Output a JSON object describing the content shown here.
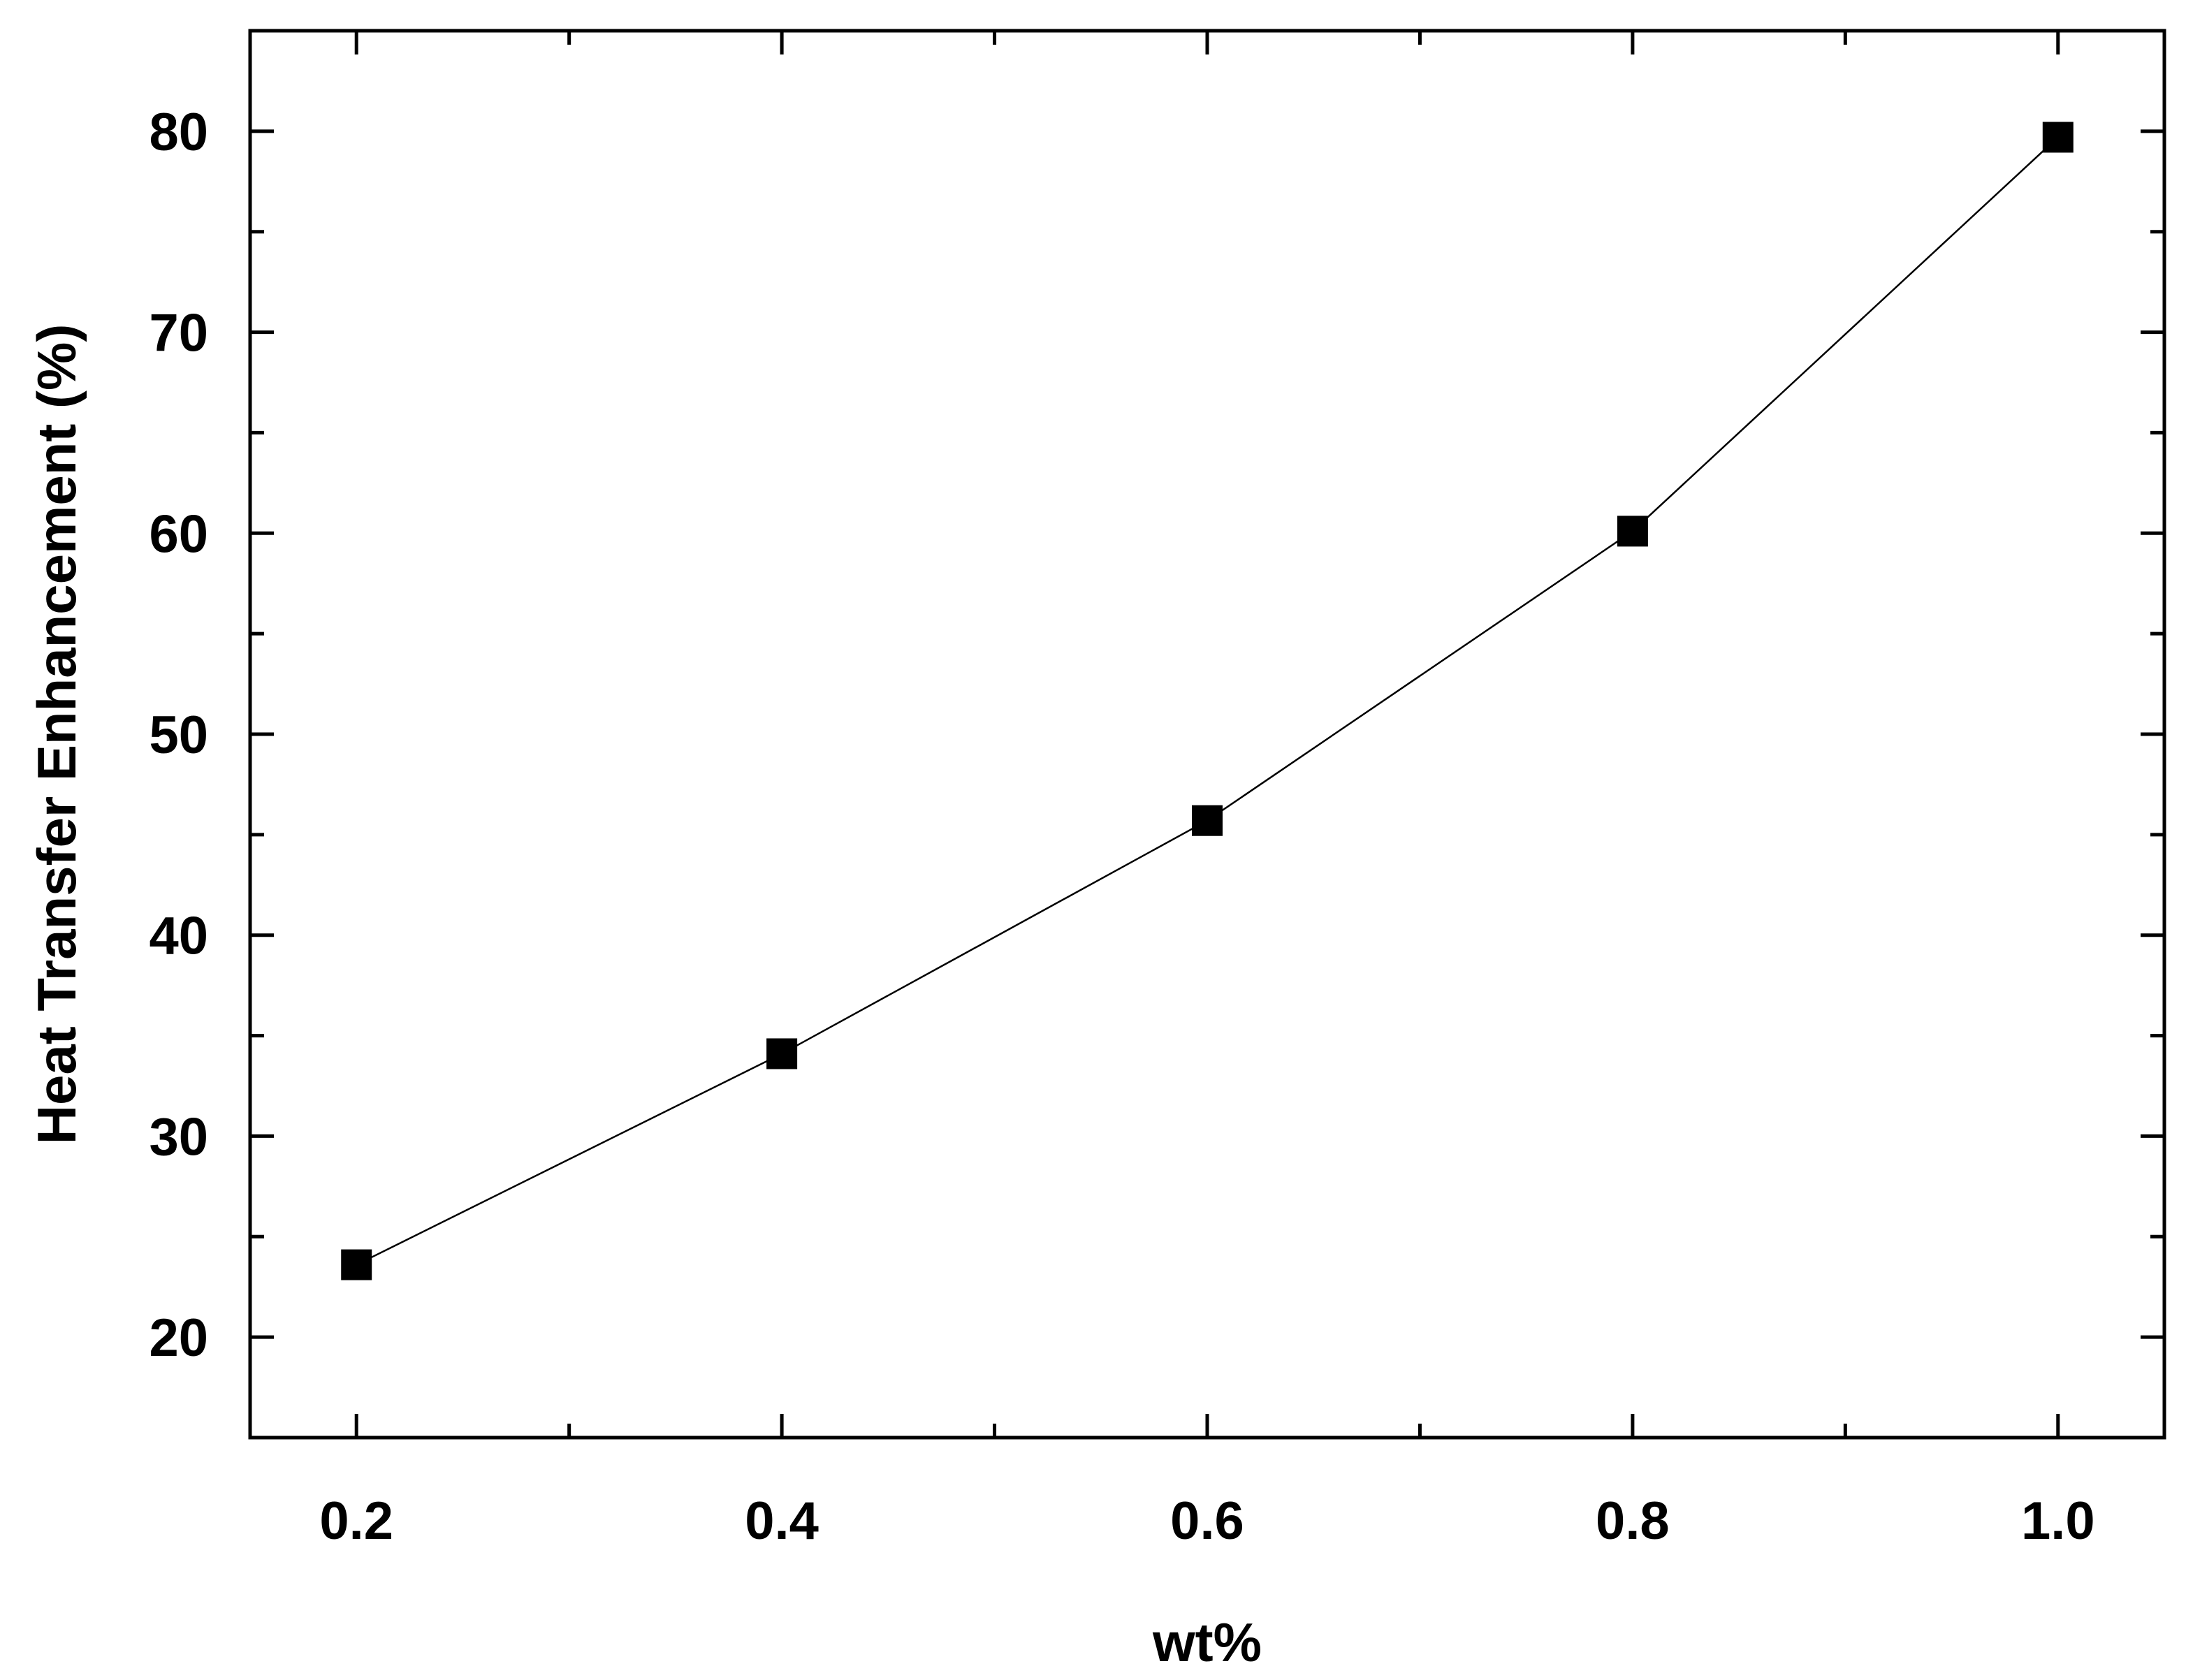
{
  "chart_data": {
    "type": "line",
    "xlabel": "wt%",
    "ylabel": "Heat Transfer Enhancement (%)",
    "xlim": [
      0.15,
      1.05
    ],
    "ylim": [
      15,
      85
    ],
    "x_ticks": [
      0.2,
      0.4,
      0.6,
      0.8,
      1.0
    ],
    "x_tick_labels": [
      "0.2",
      "0.4",
      "0.6",
      "0.8",
      "1.0"
    ],
    "x_minor_ticks": [
      0.3,
      0.5,
      0.7,
      0.9
    ],
    "y_ticks": [
      20,
      30,
      40,
      50,
      60,
      70,
      80
    ],
    "y_tick_labels": [
      "20",
      "30",
      "40",
      "50",
      "60",
      "70",
      "80"
    ],
    "y_minor_ticks": [
      25,
      35,
      45,
      55,
      65,
      75
    ],
    "grid": false,
    "marker": "square",
    "color": "#000000",
    "series": [
      {
        "x": [
          0.2,
          0.4,
          0.6,
          0.8,
          1.0
        ],
        "values": [
          23.6,
          34.1,
          45.7,
          60.1,
          79.7
        ]
      }
    ]
  }
}
